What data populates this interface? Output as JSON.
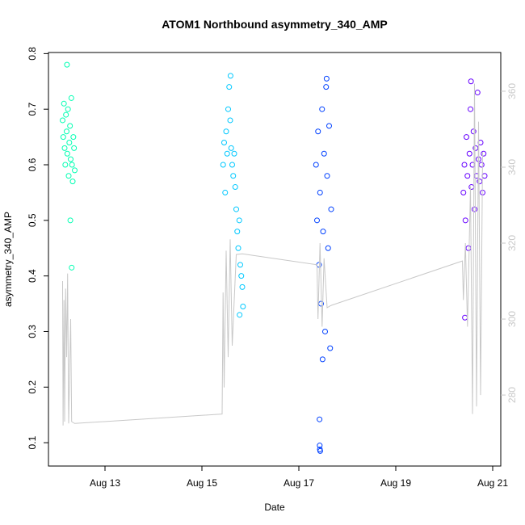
{
  "chart_data": {
    "type": "scatter",
    "title": "ATOM1 Northbound asymmetry_340_AMP",
    "x_label": "Date",
    "y_label": "asymmetry_340_AMP",
    "xlim": [
      "Aug 11 20:00",
      "Aug 21 04:00"
    ],
    "xticks": [
      "Aug 13",
      "Aug 15",
      "Aug 17",
      "Aug 19",
      "Aug 21"
    ],
    "ylim": [
      0.058,
      0.802
    ],
    "yticks": [
      0.1,
      0.2,
      0.3,
      0.4,
      0.5,
      0.6,
      0.7,
      0.8
    ],
    "y2lim": [
      261.3,
      370.2
    ],
    "y2ticks": [
      280,
      300,
      320,
      340,
      360
    ],
    "series": [
      {
        "color": "#00ffb2",
        "x": [
          "Aug 12 03:00",
          "Aug 12 03:20",
          "Aug 12 03:40",
          "Aug 12 04:00",
          "Aug 12 04:20",
          "Aug 12 04:40",
          "Aug 12 05:00",
          "Aug 12 05:20",
          "Aug 12 05:40",
          "Aug 12 06:00",
          "Aug 12 06:20",
          "Aug 12 06:40",
          "Aug 12 07:00",
          "Aug 12 07:20",
          "Aug 12 07:40",
          "Aug 12 08:00",
          "Aug 12 08:20",
          "Aug 12 08:40",
          "Aug 12 09:00",
          "Aug 12 05:10",
          "Aug 12 06:50",
          "Aug 12 07:30"
        ],
        "values": [
          0.68,
          0.65,
          0.71,
          0.63,
          0.6,
          0.69,
          0.66,
          0.62,
          0.7,
          0.58,
          0.64,
          0.67,
          0.61,
          0.72,
          0.6,
          0.57,
          0.65,
          0.63,
          0.59,
          0.78,
          0.5,
          0.415
        ]
      },
      {
        "color": "#00c8ff",
        "x": [
          "Aug 15 10:30",
          "Aug 15 11:00",
          "Aug 15 11:30",
          "Aug 15 12:00",
          "Aug 15 12:30",
          "Aug 15 13:00",
          "Aug 15 13:30",
          "Aug 15 14:00",
          "Aug 15 14:30",
          "Aug 15 15:00",
          "Aug 15 15:30",
          "Aug 15 16:00",
          "Aug 15 16:30",
          "Aug 15 17:00",
          "Aug 15 17:30",
          "Aug 15 18:00",
          "Aug 15 18:30",
          "Aug 15 19:00",
          "Aug 15 19:30",
          "Aug 15 20:00",
          "Aug 15 20:20",
          "Aug 15 14:10",
          "Aug 15 18:40"
        ],
        "values": [
          0.6,
          0.64,
          0.55,
          0.66,
          0.62,
          0.7,
          0.74,
          0.68,
          0.63,
          0.6,
          0.58,
          0.62,
          0.56,
          0.52,
          0.48,
          0.45,
          0.5,
          0.42,
          0.4,
          0.38,
          0.345,
          0.76,
          0.33
        ]
      },
      {
        "color": "#0040ff",
        "x": [
          "Aug 17 08:30",
          "Aug 17 09:00",
          "Aug 17 09:30",
          "Aug 17 10:00",
          "Aug 17 10:30",
          "Aug 17 11:00",
          "Aug 17 11:30",
          "Aug 17 12:00",
          "Aug 17 12:30",
          "Aug 17 13:00",
          "Aug 17 13:30",
          "Aug 17 14:00",
          "Aug 17 14:30",
          "Aug 17 15:00",
          "Aug 17 15:30",
          "Aug 17 16:00",
          "Aug 17 10:15",
          "Aug 17 10:20",
          "Aug 17 10:25",
          "Aug 17 10:35",
          "Aug 17 13:45",
          "Aug 17 11:45"
        ],
        "values": [
          0.6,
          0.5,
          0.66,
          0.42,
          0.55,
          0.35,
          0.7,
          0.48,
          0.62,
          0.3,
          0.74,
          0.58,
          0.45,
          0.67,
          0.27,
          0.52,
          0.142,
          0.095,
          0.088,
          0.085,
          0.755,
          0.25
        ]
      },
      {
        "color": "#6600ff",
        "x": [
          "Aug 20 09:30",
          "Aug 20 10:00",
          "Aug 20 10:30",
          "Aug 20 11:00",
          "Aug 20 11:30",
          "Aug 20 12:00",
          "Aug 20 12:30",
          "Aug 20 13:00",
          "Aug 20 13:30",
          "Aug 20 14:00",
          "Aug 20 14:30",
          "Aug 20 15:00",
          "Aug 20 15:30",
          "Aug 20 16:00",
          "Aug 20 16:30",
          "Aug 20 17:00",
          "Aug 20 17:30",
          "Aug 20 18:00",
          "Aug 20 18:30",
          "Aug 20 19:00",
          "Aug 20 19:30",
          "Aug 20 20:00",
          "Aug 20 10:15",
          "Aug 20 13:15"
        ],
        "values": [
          0.55,
          0.6,
          0.5,
          0.65,
          0.58,
          0.45,
          0.62,
          0.7,
          0.56,
          0.6,
          0.66,
          0.52,
          0.63,
          0.58,
          0.73,
          0.61,
          0.57,
          0.64,
          0.6,
          0.55,
          0.62,
          0.58,
          0.325,
          0.75
        ]
      },
      {
        "type": "line",
        "axis": "y2",
        "color": "#c8c8c8",
        "x": [
          "Aug 12 03:00",
          "Aug 12 03:15",
          "Aug 12 03:40",
          "Aug 12 04:00",
          "Aug 12 04:30",
          "Aug 12 05:00",
          "Aug 12 05:30",
          "Aug 12 06:00",
          "Aug 12 07:00",
          "Aug 12 07:30",
          "Aug 12 09:00",
          "Aug 15 10:00",
          "Aug 15 10:30",
          "Aug 15 11:00",
          "Aug 15 12:00",
          "Aug 15 13:00",
          "Aug 15 14:00",
          "Aug 15 15:00",
          "Aug 15 17:00",
          "Aug 15 20:00",
          "Aug 17 09:00",
          "Aug 17 09:30",
          "Aug 17 10:30",
          "Aug 17 11:30",
          "Aug 17 12:30",
          "Aug 17 14:00",
          "Aug 17 16:00",
          "Aug 20 09:00",
          "Aug 20 09:30",
          "Aug 20 10:30",
          "Aug 20 11:30",
          "Aug 20 13:00",
          "Aug 20 14:00",
          "Aug 20 15:00",
          "Aug 20 16:00",
          "Aug 20 17:00",
          "Aug 20 18:00",
          "Aug 20 19:00"
        ],
        "values": [
          310,
          272,
          305,
          273,
          308,
          290,
          312,
          272.5,
          300,
          273,
          272.5,
          275,
          307,
          282,
          318,
          290,
          321,
          293,
          317,
          317.2,
          314.3,
          300,
          320,
          298,
          316,
          303,
          303.6,
          315.3,
          305,
          320,
          298,
          335,
          275,
          362,
          277,
          352,
          280,
          344
        ]
      }
    ]
  }
}
